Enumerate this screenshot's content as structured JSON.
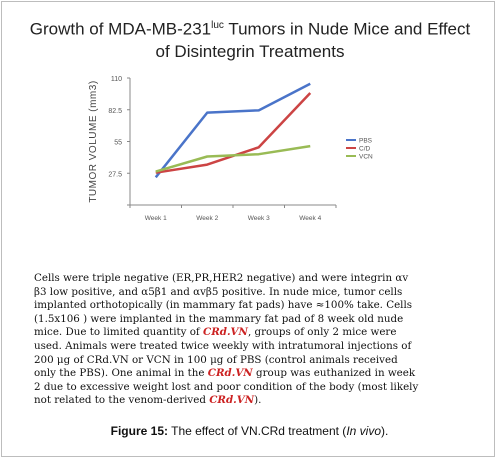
{
  "chart_data": {
    "type": "line",
    "title_prefix": "Growth of MDA-MB-231",
    "title_superscript": "luc",
    "title_suffix": " Tumors in Nude Mice  and Effect",
    "title_line2": "of Disintegrin Treatments",
    "ylabel": "TUMOR VOLUME",
    "ylabel_unit": "(mm3)",
    "xlabel": "",
    "categories": [
      "Week 1",
      "Week 2",
      "Week 3",
      "Week 4"
    ],
    "ylim": [
      0,
      110
    ],
    "yticks": [
      0,
      27.5,
      55,
      82.5,
      110
    ],
    "ytick_labels": [
      "",
      "27.5",
      "55",
      "82.5",
      "110"
    ],
    "grid": false,
    "legend_position": "right",
    "series": [
      {
        "name": "PBS",
        "color": "#4a74c9",
        "values": [
          24,
          80,
          82,
          105
        ]
      },
      {
        "name": "C/D",
        "color": "#cc4444",
        "values": [
          28,
          35,
          50,
          97
        ]
      },
      {
        "name": "VCN",
        "color": "#99bb55",
        "values": [
          29,
          42,
          44,
          51
        ]
      }
    ]
  },
  "caption": {
    "line1": "Cells were triple negative (ER,PR,HER2 negative) and  were integrin αv",
    "line2": "β3 low positive, and α5β1 and αvβ5 positive. In nude mice, tumor cells",
    "line3": "implanted orthotopically (in mammary fat pads) have  ≈100% take. Cells",
    "line4": "(1.5x106 ) were    implanted in the mammary fat pad of 8 week old nude",
    "line5_a": "mice. Due to limited quantity of ",
    "line5_cr": "CRd.VN",
    "line5_b": ", groups of only 2 mice were",
    "line6": "used. Animals were treated twice weekly with intratumoral injections of",
    "line7": "200 μg of CRd.VN or VCN in 100 μg of PBS (control animals received",
    "line8_a": "only the PBS). One animal in the ",
    "line8_cr": "CRd.VN",
    "line8_b": " group was euthanized in week",
    "line9": "2 due to excessive weight lost and poor condition of the body (most likely",
    "line10_a": "not related to the venom-derived ",
    "line10_cr": "CRd.VN",
    "line10_b": ")."
  },
  "figure_caption": {
    "label": "Figure 15:",
    "text_a": " The effect of VN.CRd treatment (",
    "text_italic": "In vivo",
    "text_b": ")."
  }
}
